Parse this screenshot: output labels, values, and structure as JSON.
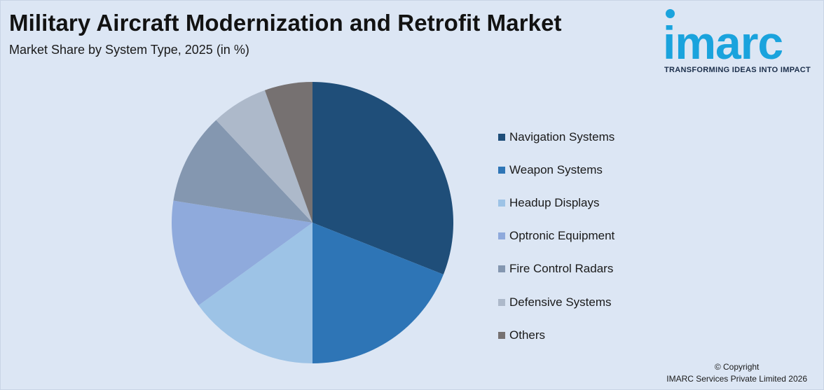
{
  "header": {
    "title": "Military Aircraft Modernization and Retrofit Market",
    "subtitle": "Market Share by System Type, 2025 (in %)"
  },
  "logo": {
    "wordmark": "imarc",
    "tagline": "TRANSFORMING IDEAS INTO IMPACT",
    "color": "#1aa3dd"
  },
  "footer": {
    "copyright_line1": "© Copyright",
    "copyright_line2": "IMARC Services Private Limited 2026"
  },
  "chart_data": {
    "type": "pie",
    "title": "Military Aircraft Modernization and Retrofit Market",
    "subtitle": "Market Share by System Type, 2025 (in %)",
    "start_angle_deg": 0,
    "direction": "clockwise",
    "legend_position": "right",
    "slices": [
      {
        "label": "Navigation Systems",
        "value": 31,
        "color": "#1f4e79"
      },
      {
        "label": "Weapon Systems",
        "value": 19,
        "color": "#2e75b6"
      },
      {
        "label": "Headup Displays",
        "value": 15,
        "color": "#9dc3e6"
      },
      {
        "label": "Optronic Equipment",
        "value": 12.5,
        "color": "#8faadc"
      },
      {
        "label": "Fire Control Radars",
        "value": 10.5,
        "color": "#8497b0"
      },
      {
        "label": "Defensive Systems",
        "value": 6.5,
        "color": "#adb9ca"
      },
      {
        "label": "Others",
        "value": 5.5,
        "color": "#767171"
      }
    ]
  }
}
